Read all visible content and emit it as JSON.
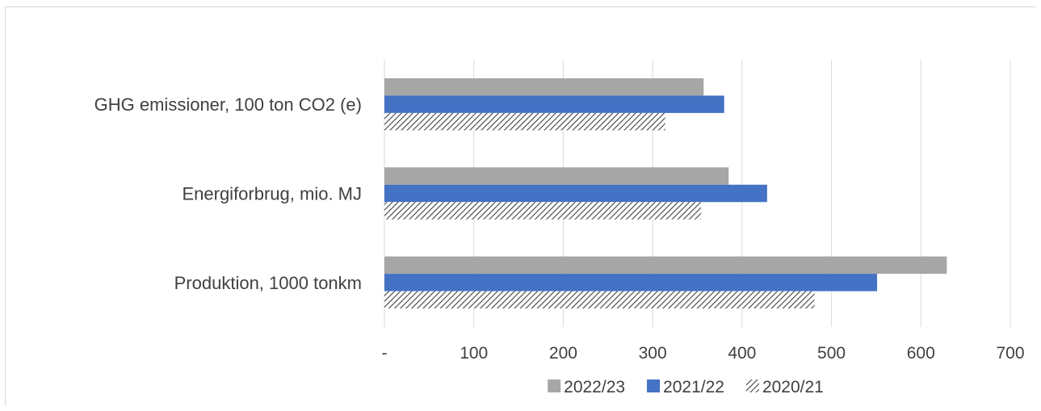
{
  "chart_data": {
    "type": "bar",
    "orientation": "horizontal",
    "title": "",
    "xlabel": "",
    "ylabel": "",
    "categories": [
      "GHG emissioner, 100 ton CO2 (e)",
      "Energiforbrug, mio. MJ",
      "Produktion, 1000 tonkm"
    ],
    "series": [
      {
        "name": "2022/23",
        "values": [
          357,
          385,
          629
        ],
        "color": "#a6a6a6",
        "pattern": "solid"
      },
      {
        "name": "2021/22",
        "values": [
          380,
          428,
          551
        ],
        "color": "#4472c4",
        "pattern": "solid"
      },
      {
        "name": "2020/21",
        "values": [
          314,
          354,
          481
        ],
        "color": "#404040",
        "pattern": "diagonal-hatch"
      }
    ],
    "xlim": [
      0,
      700
    ],
    "x_ticks": [
      0,
      100,
      200,
      300,
      400,
      500,
      600,
      700
    ],
    "x_tick_labels": [
      "-",
      "100",
      "200",
      "300",
      "400",
      "500",
      "600",
      "700"
    ],
    "grid": "vertical",
    "legend": "bottom-center",
    "gridline_color": "#d9d9d9",
    "text_color": "#404040"
  }
}
